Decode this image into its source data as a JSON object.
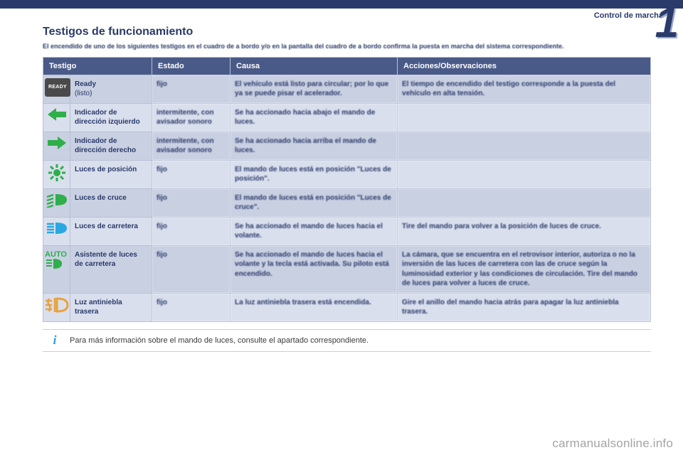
{
  "breadcrumb": "Control de marcha",
  "title": "Testigos de funcionamiento",
  "intro": "El encendido de uno de los siguientes testigos en el cuadro de a bordo y/o en la pantalla del cuadro de a bordo confirma la puesta en marcha del sistema correspondiente.",
  "columns": {
    "testigo": "Testigo",
    "estado": "Estado",
    "causa": "Causa",
    "acciones": "Acciones/Observaciones"
  },
  "rows": [
    {
      "icon": "ready",
      "icon_label": "READY",
      "name": "Ready",
      "name_sub": "(listo)",
      "estado": "fijo",
      "causa": "El vehículo está listo para circular; por lo que ya se puede pisar el acelerador.",
      "acciones": "El tiempo de encendido del testigo corresponde a la puesta del vehículo en alta tensión."
    },
    {
      "icon": "arrow-left",
      "name": "Indicador de dirección izquierdo",
      "estado": "intermitente, con avisador sonoro",
      "causa": "Se ha accionado hacia abajo el mando de luces.",
      "acciones": ""
    },
    {
      "icon": "arrow-right",
      "name": "Indicador de dirección derecho",
      "estado": "intermitente, con avisador sonoro",
      "causa": "Se ha accionado hacia arriba el mando de luces.",
      "acciones": ""
    },
    {
      "icon": "position-lights",
      "name": "Luces de posición",
      "estado": "fijo",
      "causa": "El mando de luces está en posición \"Luces de posición\".",
      "acciones": ""
    },
    {
      "icon": "low-beam",
      "name": "Luces de cruce",
      "estado": "fijo",
      "causa": "El mando de luces está en posición \"Luces de cruce\".",
      "acciones": ""
    },
    {
      "icon": "high-beam",
      "name": "Luces de carretera",
      "estado": "fijo",
      "causa": "Se ha accionado el mando de luces hacia el volante.",
      "acciones": "Tire del mando para volver a la posición de luces de cruce."
    },
    {
      "icon": "auto-high",
      "name": "Asistente de luces de carretera",
      "estado": "fijo",
      "causa": "Se ha accionado el mando de luces hacia el volante y la tecla está activada. Su piloto está encendido.",
      "acciones": "La cámara, que se encuentra en el retrovisor interior, autoriza o no la inversión de las luces de carretera con las de cruce según la luminosidad exterior y las condiciones de circulación. Tire del mando de luces para volver a luces de cruce."
    },
    {
      "icon": "rear-fog",
      "name": "Luz antiniebla trasera",
      "estado": "fijo",
      "causa": "La luz antiniebla trasera está encendida.",
      "acciones": "Gire el anillo del mando hacia atrás para apagar la luz antiniebla trasera."
    }
  ],
  "footer": "Para más información sobre el mando de luces, consulte el apartado correspondiente.",
  "watermark": "carmanualsonline.info",
  "colors": {
    "brand": "#2a3a6a",
    "header_bg": "#4a5a88",
    "row_a": "#c9d0e2",
    "row_b": "#d9dfed",
    "green": "#2fae4a",
    "blue": "#2aa7e0",
    "amber": "#e9a13c"
  }
}
